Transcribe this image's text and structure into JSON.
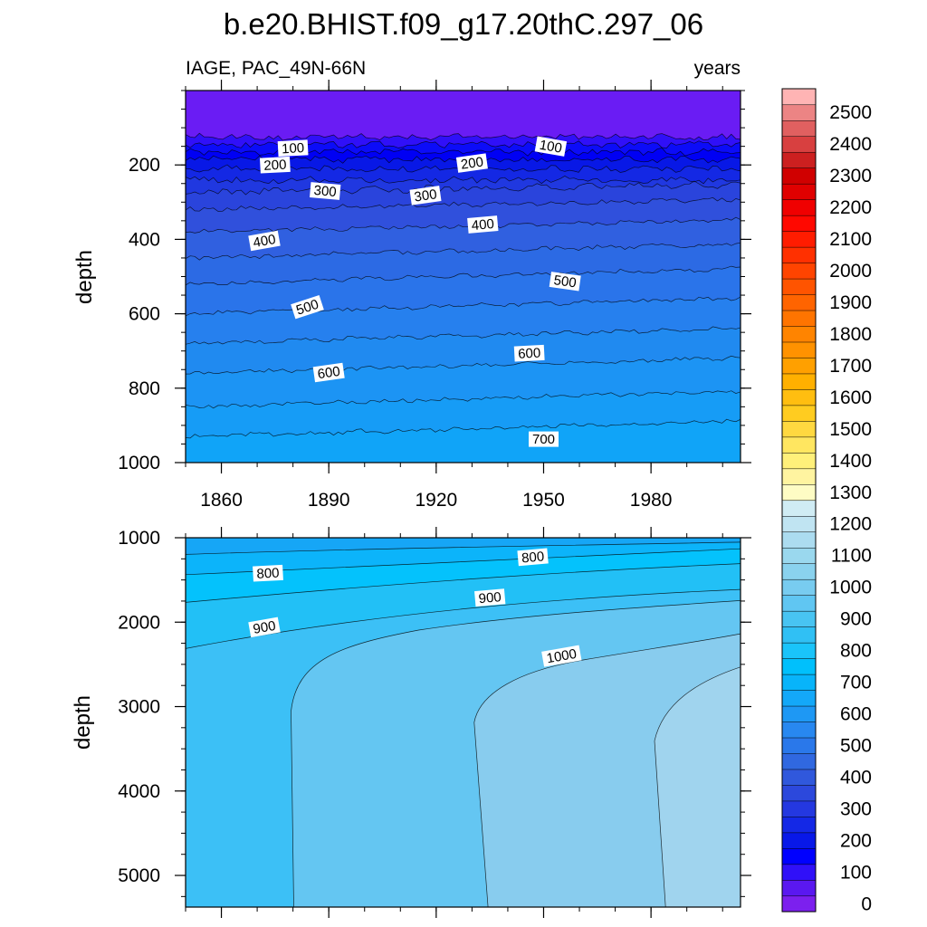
{
  "title": "b.e20.BHIST.f09_g17.20thC.297_06",
  "chart_data": {
    "type": "heatmap",
    "title": "b.e20.BHIST.f09_g17.20thC.297_06",
    "variable_label": "IAGE, PAC_49N-66N",
    "units_label": "years",
    "xlabel": "",
    "ylabel": "depth",
    "x_range": [
      1850,
      2005
    ],
    "x_ticks": [
      1860,
      1890,
      1920,
      1950,
      1980
    ],
    "x_tick_labels": [
      "1860",
      "1890",
      "1920",
      "1950",
      "1980"
    ],
    "colorbar": {
      "labels": [
        "0",
        "100",
        "200",
        "300",
        "400",
        "500",
        "600",
        "700",
        "800",
        "900",
        "1000",
        "1100",
        "1200",
        "1300",
        "1400",
        "1500",
        "1600",
        "1700",
        "1800",
        "1900",
        "2000",
        "2100",
        "2200",
        "2300",
        "2400",
        "2500"
      ],
      "colors": [
        "#7c20ee",
        "#5a18f0",
        "#3010f8",
        "#0000ff",
        "#0818e8",
        "#1428e6",
        "#2438e0",
        "#2c48dc",
        "#3058dc",
        "#3068e0",
        "#2a78ea",
        "#2888f0",
        "#1e98f4",
        "#14a8f8",
        "#08b4fa",
        "#00c0fc",
        "#1ac4fa",
        "#30c0f4",
        "#48c4f2",
        "#60c6f2",
        "#78ccf0",
        "#8ad2ee",
        "#9ad8ee",
        "#acdcf0",
        "#c0e4f2",
        "#d0ecf4",
        "#fefcc4",
        "#fff4a0",
        "#fff07a",
        "#ffe660",
        "#ffd840",
        "#ffcc20",
        "#ffbe10",
        "#ffb000",
        "#ffa000",
        "#ff9200",
        "#ff8400",
        "#ff7400",
        "#ff6400",
        "#ff5400",
        "#ff4400",
        "#ff3000",
        "#ff1c00",
        "#ff0800",
        "#f00000",
        "#e00000",
        "#d00000",
        "#cc2020",
        "#d84040",
        "#e06060",
        "#ec8484",
        "#ffb4b4"
      ]
    },
    "panels": [
      {
        "id": "upper",
        "y_range": [
          0,
          1000
        ],
        "y_ticks": [
          200,
          400,
          600,
          800,
          1000
        ],
        "y_tick_labels": [
          "200",
          "400",
          "600",
          "800",
          "1000"
        ],
        "bands": [
          {
            "top": 0,
            "color": "#6a1cf4"
          },
          {
            "top": 125,
            "color": "#3010f8"
          },
          {
            "top": 145,
            "color": "#0c0cf8"
          },
          {
            "top": 165,
            "color": "#0000f4"
          },
          {
            "top": 185,
            "color": "#0818e6"
          },
          {
            "top": 210,
            "color": "#1428e4"
          },
          {
            "top": 240,
            "color": "#2038e0"
          },
          {
            "top": 275,
            "color": "#2a44dc"
          },
          {
            "top": 320,
            "color": "#3050dc"
          },
          {
            "top": 380,
            "color": "#3060e0"
          },
          {
            "top": 450,
            "color": "#2c6ae4"
          },
          {
            "top": 520,
            "color": "#2a74ea"
          },
          {
            "top": 600,
            "color": "#2680ee"
          },
          {
            "top": 680,
            "color": "#208af0"
          },
          {
            "top": 760,
            "color": "#1c94f4"
          },
          {
            "top": 850,
            "color": "#169cf6"
          },
          {
            "top": 930,
            "color": "#10a4f8"
          }
        ],
        "contour_labels": [
          {
            "text": "100",
            "x": 1880,
            "y": 155,
            "angle": -3
          },
          {
            "text": "100",
            "x": 1952,
            "y": 150,
            "angle": 10
          },
          {
            "text": "200",
            "x": 1875,
            "y": 200,
            "angle": -3
          },
          {
            "text": "200",
            "x": 1930,
            "y": 195,
            "angle": -8
          },
          {
            "text": "300",
            "x": 1889,
            "y": 270,
            "angle": 5
          },
          {
            "text": "300",
            "x": 1917,
            "y": 282,
            "angle": -8
          },
          {
            "text": "400",
            "x": 1872,
            "y": 404,
            "angle": -10
          },
          {
            "text": "400",
            "x": 1933,
            "y": 360,
            "angle": -5
          },
          {
            "text": "500",
            "x": 1884,
            "y": 582,
            "angle": -18
          },
          {
            "text": "500",
            "x": 1956,
            "y": 513,
            "angle": 8
          },
          {
            "text": "600",
            "x": 1890,
            "y": 758,
            "angle": -8
          },
          {
            "text": "600",
            "x": 1946,
            "y": 706,
            "angle": -3
          },
          {
            "text": "700",
            "x": 1950,
            "y": 937,
            "angle": 0
          }
        ]
      },
      {
        "id": "lower",
        "y_range": [
          1000,
          5375
        ],
        "y_ticks": [
          1000,
          2000,
          3000,
          4000,
          5000
        ],
        "y_tick_labels": [
          "1000",
          "2000",
          "3000",
          "4000",
          "5000"
        ],
        "contour_labels": [
          {
            "text": "800",
            "x": 1873,
            "y": 1420,
            "angle": -3
          },
          {
            "text": "800",
            "x": 1947,
            "y": 1230,
            "angle": -5
          },
          {
            "text": "900",
            "x": 1872,
            "y": 2060,
            "angle": -10
          },
          {
            "text": "900",
            "x": 1935,
            "y": 1710,
            "angle": -5
          },
          {
            "text": "1000",
            "x": 1955,
            "y": 2400,
            "angle": -10
          }
        ]
      }
    ]
  }
}
